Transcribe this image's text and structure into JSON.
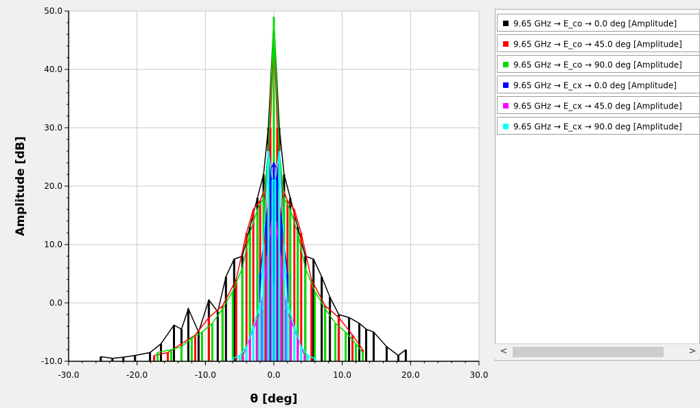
{
  "chart_data": {
    "type": "line",
    "xlabel": "θ [deg]",
    "ylabel": "Amplitude [dB]",
    "xlim": [
      -30,
      30
    ],
    "ylim": [
      -10,
      50
    ],
    "x_ticks": [
      "-30.0",
      "-20.0",
      "-10.0",
      "0.0",
      "10.0",
      "20.0",
      "30.0"
    ],
    "y_ticks": [
      "-10.0",
      "0.0",
      "10.0",
      "20.0",
      "30.0",
      "40.0",
      "50.0"
    ],
    "grid": true,
    "legend_position": "right-panel",
    "series": [
      {
        "name": "9.65 GHz → E_co → 0.0 deg [Amplitude]",
        "color": "#000000",
        "x": [
          -25.3,
          -23.6,
          -22.0,
          -20.3,
          -18.1,
          -16.5,
          -14.6,
          -13.5,
          -12.5,
          -11.0,
          -9.5,
          -8.2,
          -7.0,
          -5.8,
          -4.6,
          -3.5,
          -2.4,
          -1.5,
          -0.8,
          0.0,
          0.8,
          1.5,
          2.4,
          3.5,
          4.6,
          5.8,
          7.0,
          8.2,
          9.5,
          11.0,
          12.5,
          13.5,
          14.6,
          16.5,
          18.2,
          19.3
        ],
        "y": [
          -9.2,
          -9.5,
          -9.3,
          -9.0,
          -8.5,
          -7.0,
          -3.8,
          -4.5,
          -1.0,
          -5.0,
          0.5,
          -1.5,
          4.5,
          7.5,
          8.0,
          13.0,
          18.0,
          22.0,
          30.0,
          48.5,
          30.0,
          22.0,
          18.0,
          13.0,
          8.0,
          7.5,
          4.5,
          1.0,
          -2.0,
          -2.5,
          -3.5,
          -4.5,
          -5.0,
          -7.5,
          -9.0,
          -8.0
        ]
      },
      {
        "name": "9.65 GHz → E_co → 45.0 deg [Amplitude]",
        "color": "#ff0000",
        "x": [
          -17.5,
          -15.5,
          -13.5,
          -11.5,
          -9.5,
          -7.5,
          -5.5,
          -4.0,
          -3.0,
          -2.0,
          -1.2,
          -0.5,
          0.0,
          0.5,
          1.2,
          2.0,
          3.0,
          4.0,
          5.5,
          7.5,
          9.5,
          11.5,
          13.0
        ],
        "y": [
          -9.0,
          -8.5,
          -7.0,
          -5.5,
          -2.5,
          -0.5,
          4.0,
          12.0,
          16.0,
          17.5,
          20.0,
          30.0,
          48.0,
          30.0,
          20.0,
          17.5,
          16.0,
          12.0,
          4.0,
          -0.5,
          -2.5,
          -5.5,
          -8.0
        ]
      },
      {
        "name": "9.65 GHz → E_co → 90.0 deg [Amplitude]",
        "color": "#00dd00",
        "x": [
          -17.0,
          -15.0,
          -13.5,
          -12.0,
          -10.5,
          -9.0,
          -7.5,
          -6.0,
          -4.6,
          -3.5,
          -2.4,
          -1.5,
          -0.8,
          0.0,
          0.8,
          1.5,
          2.4,
          3.5,
          4.6,
          6.0,
          7.5,
          9.0,
          10.5,
          12.0,
          13.0
        ],
        "y": [
          -8.5,
          -8.0,
          -7.5,
          -6.0,
          -5.0,
          -3.5,
          -1.0,
          2.0,
          6.0,
          12.0,
          16.0,
          18.0,
          26.0,
          49.0,
          26.0,
          18.0,
          16.0,
          12.0,
          6.0,
          2.0,
          -1.0,
          -3.5,
          -5.0,
          -7.0,
          -8.5
        ]
      },
      {
        "name": "9.65 GHz → E_cx → 0.0 deg [Amplitude]",
        "color": "#0000ff",
        "x": [
          -2.0,
          -1.0,
          -0.4,
          0.0,
          0.4,
          1.0,
          2.0
        ],
        "y": [
          5.0,
          15.0,
          23.0,
          24.0,
          23.0,
          15.0,
          5.0
        ]
      },
      {
        "name": "9.65 GHz → E_cx → 45.0 deg [Amplitude]",
        "color": "#ff00ff",
        "x": [
          -4.5,
          -3.5,
          -2.5,
          -1.8,
          -1.0,
          -0.3,
          0.0,
          0.3,
          1.0,
          1.8,
          2.5,
          3.5,
          4.5
        ],
        "y": [
          -9.0,
          -6.0,
          -3.0,
          -1.0,
          8.0,
          14.0,
          -2.0,
          14.0,
          8.0,
          -1.0,
          -3.0,
          -6.0,
          -9.0
        ]
      },
      {
        "name": "9.65 GHz → E_cx → 90.0 deg [Amplitude]",
        "color": "#00ffff",
        "x": [
          -6.0,
          -5.0,
          -4.0,
          -3.0,
          -2.0,
          -1.5,
          -0.8,
          -0.2,
          0.2,
          0.8,
          1.5,
          2.0,
          3.0,
          4.0,
          5.0,
          6.0
        ],
        "y": [
          -9.5,
          -9.0,
          -7.5,
          -4.0,
          0.0,
          10.0,
          26.0,
          21.0,
          21.0,
          26.0,
          10.0,
          0.0,
          -4.0,
          -7.5,
          -9.0,
          -9.5
        ]
      }
    ]
  },
  "legend": {
    "items": [
      {
        "label": "9.65 GHz → E_co → 0.0 deg [Amplitude]",
        "color": "#000000"
      },
      {
        "label": "9.65 GHz → E_co → 45.0 deg [Amplitude]",
        "color": "#ff0000"
      },
      {
        "label": "9.65 GHz → E_co → 90.0 deg [Amplitude]",
        "color": "#00dd00"
      },
      {
        "label": "9.65 GHz → E_cx → 0.0 deg [Amplitude]",
        "color": "#0000ff"
      },
      {
        "label": "9.65 GHz → E_cx → 45.0 deg [Amplitude]",
        "color": "#ff00ff"
      },
      {
        "label": "9.65 GHz → E_cx → 90.0 deg [Amplitude]",
        "color": "#00ffff"
      }
    ]
  },
  "scrollbar": {
    "left_arrow": "<",
    "right_arrow": ">"
  }
}
